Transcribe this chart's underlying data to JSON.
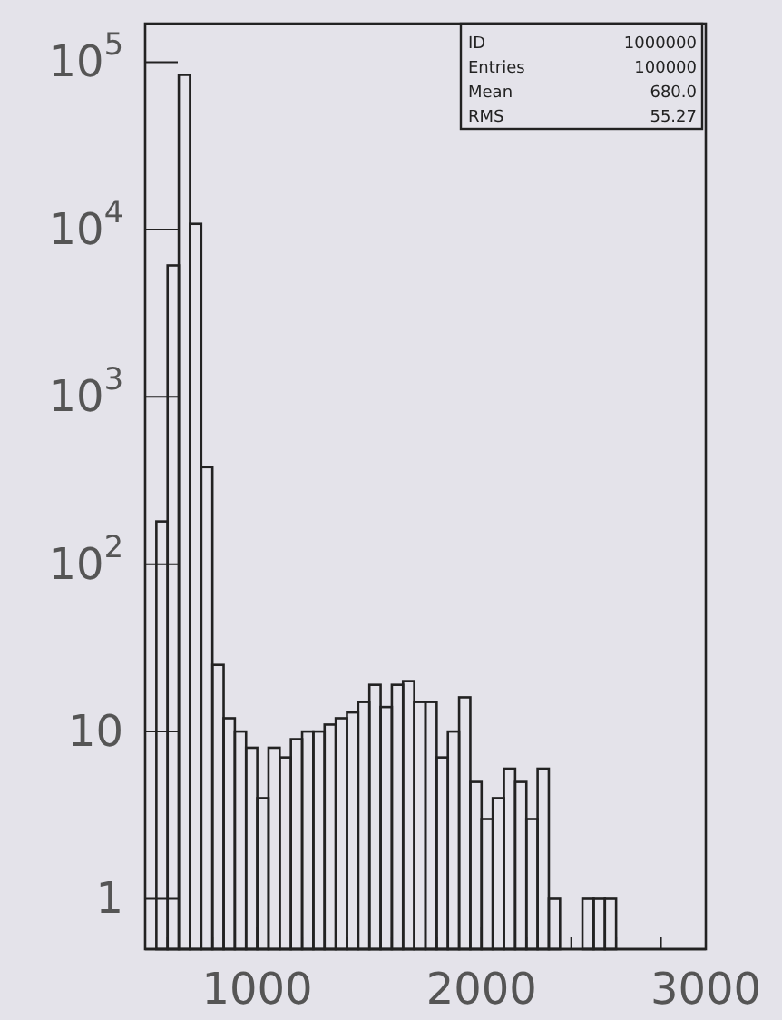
{
  "chart_data": {
    "type": "histogram",
    "bins": [
      500,
      550,
      600,
      650,
      700,
      750,
      800,
      850,
      900,
      950,
      1000,
      1050,
      1100,
      1150,
      1200,
      1250,
      1300,
      1350,
      1400,
      1450,
      1500,
      1550,
      1600,
      1650,
      1700,
      1750,
      1800,
      1850,
      1900,
      1950,
      2000,
      2050,
      2100,
      2150,
      2200,
      2250,
      2300,
      2350,
      2400,
      2450,
      2500,
      2550,
      2600,
      2650,
      2700,
      2750,
      2800,
      2850,
      2900,
      2950,
      3000
    ],
    "values": [
      null,
      180,
      6100,
      84000,
      10800,
      380,
      25,
      12,
      10,
      8,
      4,
      8,
      7,
      9,
      10,
      10,
      11,
      12,
      13,
      15,
      19,
      14,
      19,
      20,
      15,
      15,
      7,
      10,
      16,
      5,
      3,
      4,
      6,
      5,
      3,
      6,
      1,
      null,
      null,
      1,
      1,
      1,
      null,
      null,
      null,
      null,
      null,
      null,
      null,
      null
    ],
    "color": "#222222",
    "log": "y",
    "xlim": [
      500,
      3000
    ],
    "xticks": [
      {
        "value": 600,
        "label": null
      },
      {
        "value": 800,
        "label": null
      },
      1000,
      {
        "value": 1200,
        "label": null
      },
      {
        "value": 1400,
        "label": null
      },
      {
        "value": 1600,
        "label": null
      },
      {
        "value": 1800,
        "label": null
      },
      2000,
      {
        "value": 2200,
        "label": null
      },
      {
        "value": 2400,
        "label": null
      },
      {
        "value": 2600,
        "label": null
      },
      {
        "value": 2800,
        "label": null
      },
      3000
    ],
    "ylim": [
      0.5,
      170000
    ],
    "yticks": [
      1,
      10,
      {
        "value": 100,
        "label": "10$^{2}$"
      },
      {
        "value": 1000,
        "label": "10$^{3}$"
      },
      {
        "value": 10000,
        "label": "10$^{4}$"
      },
      {
        "value": 100000,
        "label": "10$^{5}$"
      }
    ],
    "annotations": [
      "ID",
      "1000000",
      "Entries",
      "100000",
      "Mean",
      "680.0",
      "RMS",
      "55.27"
    ]
  }
}
